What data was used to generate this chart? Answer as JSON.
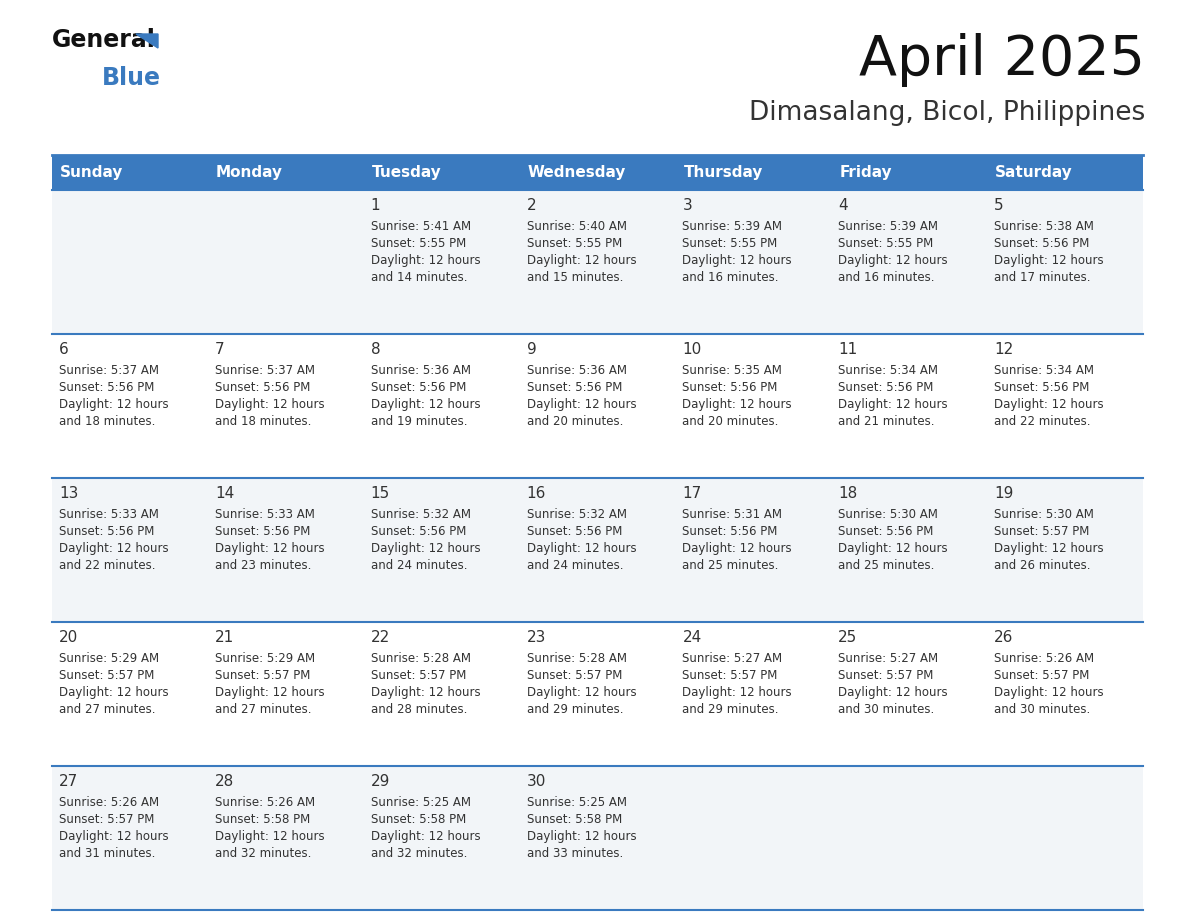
{
  "title": "April 2025",
  "subtitle": "Dimasalang, Bicol, Philippines",
  "header_bg": "#3a7abf",
  "header_text": "#ffffff",
  "day_names": [
    "Sunday",
    "Monday",
    "Tuesday",
    "Wednesday",
    "Thursday",
    "Friday",
    "Saturday"
  ],
  "cell_bg_row0": "#f2f5f8",
  "cell_bg_row1": "#ffffff",
  "divider_color": "#3a7abf",
  "text_color": "#333333",
  "logo_general_color": "#111111",
  "logo_blue_color": "#3a7abf",
  "logo_triangle_color": "#3a7abf",
  "title_fontsize": 38,
  "subtitle_fontsize": 18,
  "days": [
    {
      "date": 1,
      "col": 2,
      "row": 0,
      "sunrise": "5:41 AM",
      "sunset": "5:55 PM",
      "daylight_extra": "14 minutes."
    },
    {
      "date": 2,
      "col": 3,
      "row": 0,
      "sunrise": "5:40 AM",
      "sunset": "5:55 PM",
      "daylight_extra": "15 minutes."
    },
    {
      "date": 3,
      "col": 4,
      "row": 0,
      "sunrise": "5:39 AM",
      "sunset": "5:55 PM",
      "daylight_extra": "16 minutes."
    },
    {
      "date": 4,
      "col": 5,
      "row": 0,
      "sunrise": "5:39 AM",
      "sunset": "5:55 PM",
      "daylight_extra": "16 minutes."
    },
    {
      "date": 5,
      "col": 6,
      "row": 0,
      "sunrise": "5:38 AM",
      "sunset": "5:56 PM",
      "daylight_extra": "17 minutes."
    },
    {
      "date": 6,
      "col": 0,
      "row": 1,
      "sunrise": "5:37 AM",
      "sunset": "5:56 PM",
      "daylight_extra": "18 minutes."
    },
    {
      "date": 7,
      "col": 1,
      "row": 1,
      "sunrise": "5:37 AM",
      "sunset": "5:56 PM",
      "daylight_extra": "18 minutes."
    },
    {
      "date": 8,
      "col": 2,
      "row": 1,
      "sunrise": "5:36 AM",
      "sunset": "5:56 PM",
      "daylight_extra": "19 minutes."
    },
    {
      "date": 9,
      "col": 3,
      "row": 1,
      "sunrise": "5:36 AM",
      "sunset": "5:56 PM",
      "daylight_extra": "20 minutes."
    },
    {
      "date": 10,
      "col": 4,
      "row": 1,
      "sunrise": "5:35 AM",
      "sunset": "5:56 PM",
      "daylight_extra": "20 minutes."
    },
    {
      "date": 11,
      "col": 5,
      "row": 1,
      "sunrise": "5:34 AM",
      "sunset": "5:56 PM",
      "daylight_extra": "21 minutes."
    },
    {
      "date": 12,
      "col": 6,
      "row": 1,
      "sunrise": "5:34 AM",
      "sunset": "5:56 PM",
      "daylight_extra": "22 minutes."
    },
    {
      "date": 13,
      "col": 0,
      "row": 2,
      "sunrise": "5:33 AM",
      "sunset": "5:56 PM",
      "daylight_extra": "22 minutes."
    },
    {
      "date": 14,
      "col": 1,
      "row": 2,
      "sunrise": "5:33 AM",
      "sunset": "5:56 PM",
      "daylight_extra": "23 minutes."
    },
    {
      "date": 15,
      "col": 2,
      "row": 2,
      "sunrise": "5:32 AM",
      "sunset": "5:56 PM",
      "daylight_extra": "24 minutes."
    },
    {
      "date": 16,
      "col": 3,
      "row": 2,
      "sunrise": "5:32 AM",
      "sunset": "5:56 PM",
      "daylight_extra": "24 minutes."
    },
    {
      "date": 17,
      "col": 4,
      "row": 2,
      "sunrise": "5:31 AM",
      "sunset": "5:56 PM",
      "daylight_extra": "25 minutes."
    },
    {
      "date": 18,
      "col": 5,
      "row": 2,
      "sunrise": "5:30 AM",
      "sunset": "5:56 PM",
      "daylight_extra": "25 minutes."
    },
    {
      "date": 19,
      "col": 6,
      "row": 2,
      "sunrise": "5:30 AM",
      "sunset": "5:57 PM",
      "daylight_extra": "26 minutes."
    },
    {
      "date": 20,
      "col": 0,
      "row": 3,
      "sunrise": "5:29 AM",
      "sunset": "5:57 PM",
      "daylight_extra": "27 minutes."
    },
    {
      "date": 21,
      "col": 1,
      "row": 3,
      "sunrise": "5:29 AM",
      "sunset": "5:57 PM",
      "daylight_extra": "27 minutes."
    },
    {
      "date": 22,
      "col": 2,
      "row": 3,
      "sunrise": "5:28 AM",
      "sunset": "5:57 PM",
      "daylight_extra": "28 minutes."
    },
    {
      "date": 23,
      "col": 3,
      "row": 3,
      "sunrise": "5:28 AM",
      "sunset": "5:57 PM",
      "daylight_extra": "29 minutes."
    },
    {
      "date": 24,
      "col": 4,
      "row": 3,
      "sunrise": "5:27 AM",
      "sunset": "5:57 PM",
      "daylight_extra": "29 minutes."
    },
    {
      "date": 25,
      "col": 5,
      "row": 3,
      "sunrise": "5:27 AM",
      "sunset": "5:57 PM",
      "daylight_extra": "30 minutes."
    },
    {
      "date": 26,
      "col": 6,
      "row": 3,
      "sunrise": "5:26 AM",
      "sunset": "5:57 PM",
      "daylight_extra": "30 minutes."
    },
    {
      "date": 27,
      "col": 0,
      "row": 4,
      "sunrise": "5:26 AM",
      "sunset": "5:57 PM",
      "daylight_extra": "31 minutes."
    },
    {
      "date": 28,
      "col": 1,
      "row": 4,
      "sunrise": "5:26 AM",
      "sunset": "5:58 PM",
      "daylight_extra": "32 minutes."
    },
    {
      "date": 29,
      "col": 2,
      "row": 4,
      "sunrise": "5:25 AM",
      "sunset": "5:58 PM",
      "daylight_extra": "32 minutes."
    },
    {
      "date": 30,
      "col": 3,
      "row": 4,
      "sunrise": "5:25 AM",
      "sunset": "5:58 PM",
      "daylight_extra": "33 minutes."
    }
  ]
}
